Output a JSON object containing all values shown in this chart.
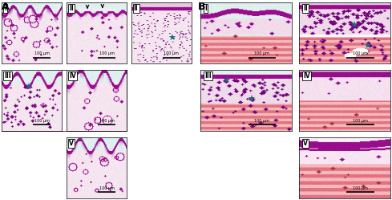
{
  "title_A": "A",
  "title_B": "B",
  "background_color": "#ffffff",
  "fig_width": 5.0,
  "fig_height": 2.57,
  "scalebar_text": "100 μm",
  "star_color": "#1a6b7a",
  "teal_bg_rgb": [
    0.82,
    0.93,
    0.93
  ],
  "bg_light_rgb": [
    0.96,
    0.9,
    0.94
  ],
  "epidermis_rgb": [
    0.6,
    0.05,
    0.55
  ],
  "dermis_rgb": [
    0.93,
    0.82,
    0.9
  ],
  "muscle_light_rgb": [
    0.97,
    0.72,
    0.74
  ],
  "muscle_dark_rgb": [
    0.88,
    0.45,
    0.5
  ],
  "cell_rgb": [
    0.55,
    0.05,
    0.55
  ],
  "inflam_rgb": [
    0.45,
    0.02,
    0.48
  ]
}
